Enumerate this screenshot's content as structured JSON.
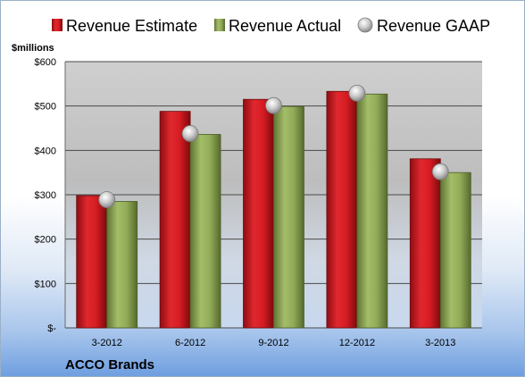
{
  "chart_data": {
    "type": "bar",
    "unit_label": "$millions",
    "footer_label": "ACCO Brands",
    "categories": [
      "3-2012",
      "6-2012",
      "9-2012",
      "12-2012",
      "3-2013"
    ],
    "series": [
      {
        "name": "Revenue Estimate",
        "type": "bar",
        "color": "#c8141c",
        "values": [
          298,
          488,
          515,
          533,
          381
        ]
      },
      {
        "name": "Revenue Actual",
        "type": "bar",
        "color": "#8aa34f",
        "values": [
          285,
          436,
          499,
          527,
          350
        ]
      },
      {
        "name": "Revenue GAAP",
        "type": "marker",
        "color": "#c4c4c4",
        "values": [
          289,
          438,
          501,
          529,
          352
        ]
      }
    ],
    "ylim": [
      0,
      600
    ],
    "yticks": [
      {
        "value": 0,
        "label": "$-"
      },
      {
        "value": 100,
        "label": "$100"
      },
      {
        "value": 200,
        "label": "$200"
      },
      {
        "value": 300,
        "label": "$300"
      },
      {
        "value": 400,
        "label": "$400"
      },
      {
        "value": 500,
        "label": "$500"
      },
      {
        "value": 600,
        "label": "$600"
      }
    ],
    "grid": true,
    "legend_position": "top"
  }
}
